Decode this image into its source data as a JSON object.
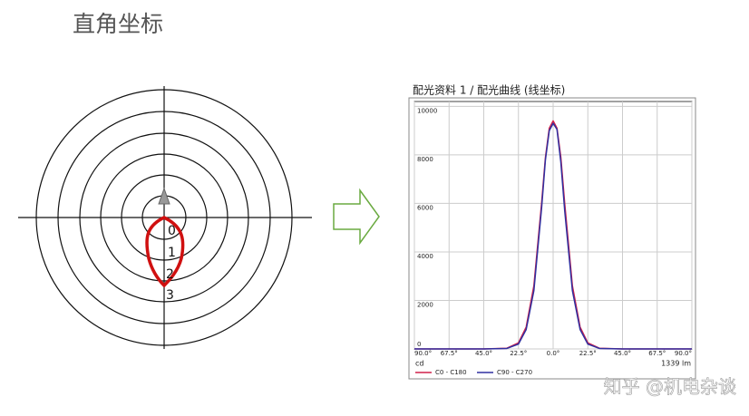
{
  "title": "直角坐标",
  "polar": {
    "ring_labels": [
      "0",
      "1",
      "2",
      "3"
    ]
  },
  "watermark": "知乎 @机电杂谈",
  "chart_data": {
    "type": "line",
    "title": "配光资料 1 / 配光曲线 (线坐标)",
    "x": [
      -90,
      -45,
      -30,
      -22.5,
      -17.5,
      -12.5,
      -7.5,
      -5,
      -2.5,
      0,
      2.5,
      5,
      7.5,
      12.5,
      17.5,
      22.5,
      30,
      45,
      90
    ],
    "series": [
      {
        "name": "C0 - C180",
        "color": "#d0204a",
        "values": [
          0,
          0,
          30,
          250,
          900,
          2600,
          6000,
          7900,
          9100,
          9400,
          9100,
          7900,
          6000,
          2600,
          900,
          250,
          30,
          0,
          0
        ]
      },
      {
        "name": "C90 - C270",
        "color": "#3030a0",
        "values": [
          0,
          0,
          20,
          200,
          800,
          2400,
          5800,
          7800,
          9000,
          9300,
          9050,
          7700,
          5700,
          2400,
          800,
          200,
          20,
          0,
          0
        ]
      }
    ],
    "xlim": [
      -90,
      90
    ],
    "xticks": [
      {
        "value": -90,
        "label": "90.0°"
      },
      {
        "value": -67.5,
        "label": "67.5°"
      },
      {
        "value": -45,
        "label": "45.0°"
      },
      {
        "value": -22.5,
        "label": "22.5°"
      },
      {
        "value": 0,
        "label": "0.0°"
      },
      {
        "value": 22.5,
        "label": "22.5°"
      },
      {
        "value": 45,
        "label": "45.0°"
      },
      {
        "value": 67.5,
        "label": "67.5°"
      },
      {
        "value": 90,
        "label": "90.0°"
      }
    ],
    "ylim": [
      0,
      10200
    ],
    "yticks": [
      0,
      2000,
      4000,
      6000,
      8000,
      10000
    ],
    "y_unit": "cd",
    "flux": "1339 lm",
    "grid": true
  }
}
